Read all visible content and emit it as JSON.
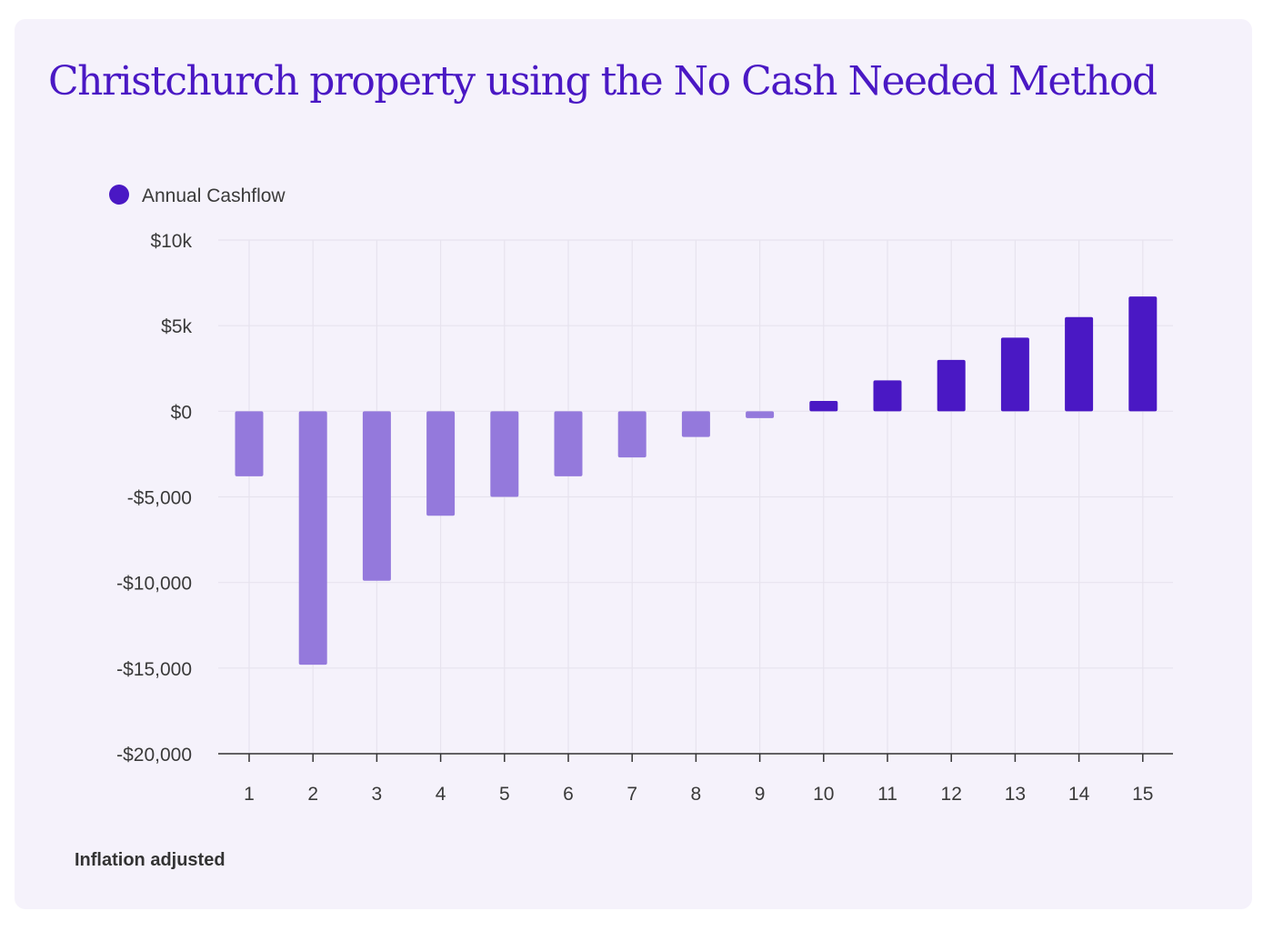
{
  "chart_data": {
    "type": "bar",
    "title": "Christchurch property using the No Cash Needed Method",
    "xlabel": "",
    "ylabel": "",
    "categories": [
      "1",
      "2",
      "3",
      "4",
      "5",
      "6",
      "7",
      "8",
      "9",
      "10",
      "11",
      "12",
      "13",
      "14",
      "15"
    ],
    "series": [
      {
        "name": "Annual Cashflow",
        "values": [
          -3800,
          -14800,
          -9900,
          -6100,
          -5000,
          -3800,
          -2700,
          -1500,
          -400,
          600,
          1800,
          3000,
          4300,
          5500,
          6700
        ]
      }
    ],
    "ylim": [
      -20000,
      10000
    ],
    "yticks": [
      10000,
      5000,
      0,
      -5000,
      -10000,
      -15000,
      -20000
    ],
    "ytick_labels": [
      "$10k",
      "$5k",
      "$0",
      "-$5,000",
      "-$10,000",
      "-$15,000",
      "-$20,000"
    ],
    "grid": true,
    "legend_position": "top-left",
    "colors": {
      "negative": "#9479dc",
      "positive": "#4a18c4",
      "legend_dot": "#4a18c4",
      "grid": "#e7e3ee",
      "axis": "#333333"
    }
  },
  "footnote": "Inflation adjusted"
}
